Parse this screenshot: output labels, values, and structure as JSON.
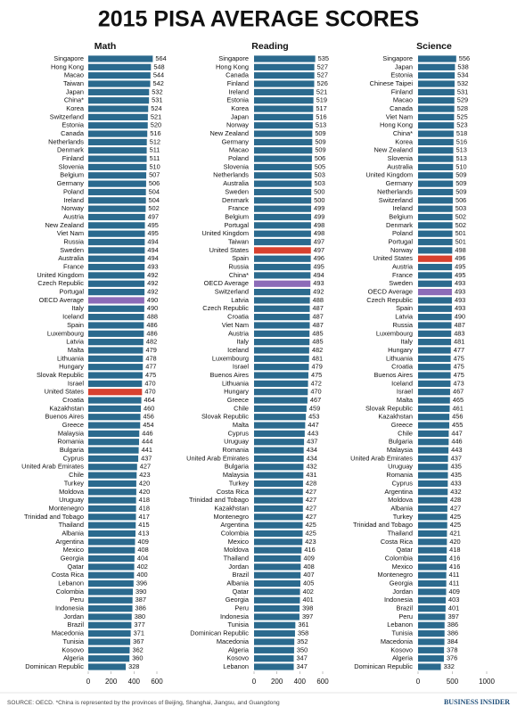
{
  "title": "2015 PISA AVERAGE SCORES",
  "source": "SOURCE: OECD. *China is represented by the provinces of Beijing, Shanghai, Jiangsu, and Guangdong",
  "brand": "BUSINESS INSIDER",
  "chart_data": [
    {
      "type": "bar",
      "orientation": "horizontal",
      "title": "Math",
      "color": "#2b6a8e",
      "highlight": {
        "United States": "#d8412f",
        "OECD Average": "#8c6bb8"
      },
      "xlim": [
        0,
        600
      ],
      "xticks": [
        0,
        200,
        400,
        600
      ],
      "categories": [
        "Singapore",
        "Hong Kong",
        "Macao",
        "Taiwan",
        "Japan",
        "China*",
        "Korea",
        "Switzerland",
        "Estonia",
        "Canada",
        "Netherlands",
        "Denmark",
        "Finland",
        "Slovenia",
        "Belgium",
        "Germany",
        "Poland",
        "Ireland",
        "Norway",
        "Austria",
        "New Zealand",
        "Viet Nam",
        "Russia",
        "Sweden",
        "Australia",
        "France",
        "United Kingdom",
        "Czech Republic",
        "Portugal",
        "OECD Average",
        "Italy",
        "Iceland",
        "Spain",
        "Luxembourg",
        "Latvia",
        "Malta",
        "Lithuania",
        "Hungary",
        "Slovak Republic",
        "Israel",
        "United States",
        "Croatia",
        "Kazakhstan",
        "Buenos Aires",
        "Greece",
        "Malaysia",
        "Romania",
        "Bulgaria",
        "Cyprus",
        "United Arab Emirates",
        "Chile",
        "Turkey",
        "Moldova",
        "Uruguay",
        "Montenegro",
        "Trinidad and Tobago",
        "Thailand",
        "Albania",
        "Argentina",
        "Mexico",
        "Georgia",
        "Qatar",
        "Costa Rica",
        "Lebanon",
        "Colombia",
        "Peru",
        "Indonesia",
        "Jordan",
        "Brazil",
        "Macedonia",
        "Tunisia",
        "Kosovo",
        "Algeria",
        "Dominican Republic"
      ],
      "values": [
        564,
        548,
        544,
        542,
        532,
        531,
        524,
        521,
        520,
        516,
        512,
        511,
        511,
        510,
        507,
        506,
        504,
        504,
        502,
        497,
        495,
        495,
        494,
        494,
        494,
        493,
        492,
        492,
        492,
        490,
        490,
        488,
        486,
        486,
        482,
        479,
        478,
        477,
        475,
        470,
        470,
        464,
        460,
        456,
        454,
        446,
        444,
        441,
        437,
        427,
        423,
        420,
        420,
        418,
        418,
        417,
        415,
        413,
        409,
        408,
        404,
        402,
        400,
        396,
        390,
        387,
        386,
        380,
        377,
        371,
        367,
        362,
        360,
        328
      ]
    },
    {
      "type": "bar",
      "orientation": "horizontal",
      "title": "Reading",
      "color": "#2b6a8e",
      "highlight": {
        "United States": "#d8412f",
        "OECD Average": "#8c6bb8"
      },
      "xlim": [
        0,
        600
      ],
      "xticks": [
        0,
        200,
        400,
        600
      ],
      "categories": [
        "Singapore",
        "Hong Kong",
        "Canada",
        "Finland",
        "Ireland",
        "Estonia",
        "Korea",
        "Japan",
        "Norway",
        "New Zealand",
        "Germany",
        "Macao",
        "Poland",
        "Slovenia",
        "Netherlands",
        "Australia",
        "Sweden",
        "Denmark",
        "France",
        "Belgium",
        "Portugal",
        "United Kingdom",
        "Taiwan",
        "United States",
        "Spain",
        "Russia",
        "China*",
        "OECD Average",
        "Switzerland",
        "Latvia",
        "Czech Republic",
        "Croatia",
        "Viet Nam",
        "Austria",
        "Italy",
        "Iceland",
        "Luxembourg",
        "Israel",
        "Buenos Aires",
        "Lithuania",
        "Hungary",
        "Greece",
        "Chile",
        "Slovak Republic",
        "Malta",
        "Cyprus",
        "Uruguay",
        "Romania",
        "United Arab Emirates",
        "Bulgaria",
        "Malaysia",
        "Turkey",
        "Costa Rica",
        "Trinidad and Tobago",
        "Kazakhstan",
        "Montenegro",
        "Argentina",
        "Colombia",
        "Mexico",
        "Moldova",
        "Thailand",
        "Jordan",
        "Brazil",
        "Albania",
        "Qatar",
        "Georgia",
        "Peru",
        "Indonesia",
        "Tunisia",
        "Dominican Republic",
        "Macedonia",
        "Algeria",
        "Kosovo",
        "Lebanon"
      ],
      "values": [
        535,
        527,
        527,
        526,
        521,
        519,
        517,
        516,
        513,
        509,
        509,
        509,
        506,
        505,
        503,
        503,
        500,
        500,
        499,
        499,
        498,
        498,
        497,
        497,
        496,
        495,
        494,
        493,
        492,
        488,
        487,
        487,
        487,
        485,
        485,
        482,
        481,
        479,
        475,
        472,
        470,
        467,
        459,
        453,
        447,
        443,
        437,
        434,
        434,
        432,
        431,
        428,
        427,
        427,
        427,
        427,
        425,
        425,
        423,
        416,
        409,
        408,
        407,
        405,
        402,
        401,
        398,
        397,
        361,
        358,
        352,
        350,
        347,
        347
      ]
    },
    {
      "type": "bar",
      "orientation": "horizontal",
      "title": "Science",
      "color": "#2b6a8e",
      "highlight": {
        "United States": "#d8412f",
        "OECD Average": "#8c6bb8"
      },
      "xlim": [
        0,
        1000
      ],
      "xticks": [
        0,
        500,
        1000
      ],
      "categories": [
        "Singapore",
        "Japan",
        "Estonia",
        "Chinese Taipei",
        "Finland",
        "Macao",
        "Canada",
        "Viet Nam",
        "Hong Kong",
        "China*",
        "Korea",
        "New Zealand",
        "Slovenia",
        "Australia",
        "United Kingdom",
        "Germany",
        "Netherlands",
        "Switzerland",
        "Ireland",
        "Belgium",
        "Denmark",
        "Poland",
        "Portugal",
        "Norway",
        "United States",
        "Austria",
        "France",
        "Sweden",
        "OECD Average",
        "Czech Republic",
        "Spain",
        "Latvia",
        "Russia",
        "Luxembourg",
        "Italy",
        "Hungary",
        "Lithuania",
        "Croatia",
        "Buenos Aires",
        "Iceland",
        "Israel",
        "Malta",
        "Slovak Republic",
        "Kazakhstan",
        "Greece",
        "Chile",
        "Bulgaria",
        "Malaysia",
        "United Arab Emirates",
        "Uruguay",
        "Romania",
        "Cyprus",
        "Argentina",
        "Moldova",
        "Albania",
        "Turkey",
        "Trinidad and Tobago",
        "Thailand",
        "Costa Rica",
        "Qatar",
        "Colombia",
        "Mexico",
        "Montenegro",
        "Georgia",
        "Jordan",
        "Indonesia",
        "Brazil",
        "Peru",
        "Lebanon",
        "Tunisia",
        "Macedonia",
        "Kosovo",
        "Algeria",
        "Dominican Republic"
      ],
      "values": [
        556,
        538,
        534,
        532,
        531,
        529,
        528,
        525,
        523,
        518,
        516,
        513,
        513,
        510,
        509,
        509,
        509,
        506,
        503,
        502,
        502,
        501,
        501,
        498,
        496,
        495,
        495,
        493,
        493,
        493,
        493,
        490,
        487,
        483,
        481,
        477,
        475,
        475,
        475,
        473,
        467,
        465,
        461,
        456,
        455,
        447,
        446,
        443,
        437,
        435,
        435,
        433,
        432,
        428,
        427,
        425,
        425,
        421,
        420,
        418,
        416,
        416,
        411,
        411,
        409,
        403,
        401,
        397,
        386,
        386,
        384,
        378,
        376,
        332
      ]
    }
  ]
}
